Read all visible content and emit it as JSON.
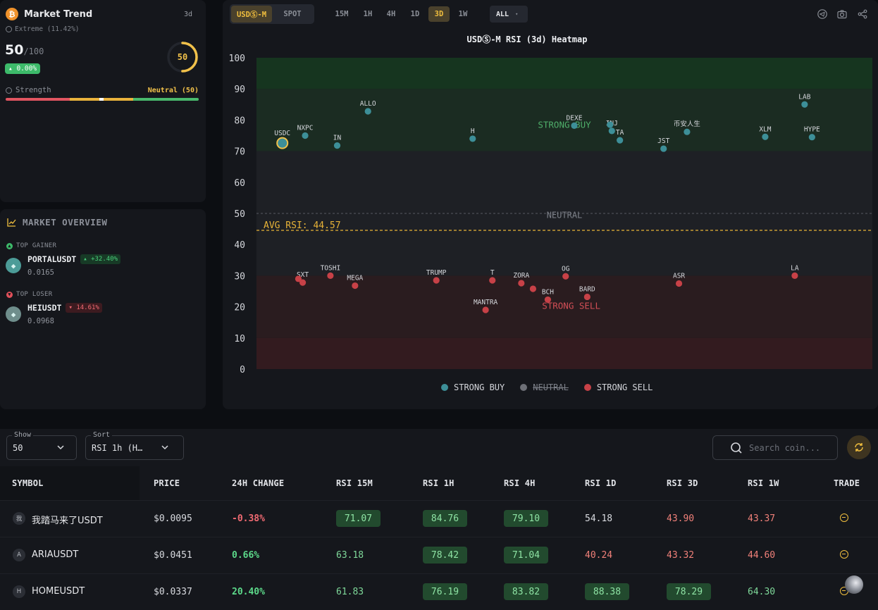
{
  "trend": {
    "title": "Market Trend",
    "period": "3d",
    "subtitle": "Extreme (11.42%)",
    "score": "50",
    "score_max": "/100",
    "change": "0.00%",
    "gauge_value": "50",
    "gauge_fraction": 0.5,
    "strength_label": "Strength",
    "strength_value": "Neutral (50)"
  },
  "overview": {
    "title": "MARKET OVERVIEW",
    "gainer_label": "TOP GAINER",
    "gainer": {
      "symbol": "PORTALUSDT",
      "change": "+32.40%",
      "price": "0.0165"
    },
    "loser_label": "TOP LOSER",
    "loser": {
      "symbol": "HEIUSDT",
      "change": "14.61%",
      "price": "0.0968"
    }
  },
  "toolbar": {
    "market_tabs": [
      "USDⓈ-M",
      "SPOT"
    ],
    "active_market": "USDⓈ-M",
    "timeframes": [
      "15M",
      "1H",
      "4H",
      "1D",
      "3D",
      "1W"
    ],
    "active_timeframe": "3D",
    "filter": "ALL"
  },
  "chart_data": {
    "type": "scatter",
    "title": "USDⓈ-M RSI (3d) Heatmap",
    "ylim": [
      0,
      100
    ],
    "yticks": [
      0,
      10,
      20,
      30,
      40,
      50,
      60,
      70,
      80,
      90,
      100
    ],
    "zones": [
      {
        "label": "STRONG BUY",
        "from": 70,
        "to": 100
      },
      {
        "label": "NEUTRAL",
        "from": 30,
        "to": 70
      },
      {
        "label": "STRONG SELL",
        "from": 0,
        "to": 30
      }
    ],
    "avg_label": "AVG RSI: 44.57",
    "avg": 44.57,
    "neutral_line": 50,
    "legend": [
      "STRONG BUY",
      "NEUTRAL",
      "STRONG SELL"
    ],
    "points": [
      {
        "label": "USDC",
        "x": 0.042,
        "y": 72.6,
        "group": "buy",
        "highlight": true
      },
      {
        "label": "NXPC",
        "x": 0.079,
        "y": 75.0,
        "group": "buy"
      },
      {
        "label": "IN",
        "x": 0.131,
        "y": 71.8,
        "group": "buy"
      },
      {
        "label": "ALLO",
        "x": 0.181,
        "y": 82.8,
        "group": "buy"
      },
      {
        "label": "H",
        "x": 0.351,
        "y": 74.0,
        "group": "buy"
      },
      {
        "label": "DEXE",
        "x": 0.516,
        "y": 78.2,
        "group": "buy"
      },
      {
        "label": "INJ",
        "x": 0.577,
        "y": 76.5,
        "group": "buy"
      },
      {
        "label": "TA",
        "x": 0.59,
        "y": 73.5,
        "group": "buy"
      },
      {
        "label": "",
        "x": 0.574,
        "y": 78.5,
        "group": "buy"
      },
      {
        "label": "JST",
        "x": 0.661,
        "y": 70.8,
        "group": "buy"
      },
      {
        "label": "币安人生",
        "x": 0.699,
        "y": 76.2,
        "group": "buy"
      },
      {
        "label": "XLM",
        "x": 0.826,
        "y": 74.6,
        "group": "buy"
      },
      {
        "label": "LAB",
        "x": 0.89,
        "y": 85.0,
        "group": "buy"
      },
      {
        "label": "HYPE",
        "x": 0.902,
        "y": 74.5,
        "group": "buy"
      },
      {
        "label": "SXT",
        "x": 0.075,
        "y": 27.8,
        "group": "sell"
      },
      {
        "label": "",
        "x": 0.068,
        "y": 29.0,
        "group": "sell"
      },
      {
        "label": "TOSHI",
        "x": 0.12,
        "y": 30.0,
        "group": "sell"
      },
      {
        "label": "MEGA",
        "x": 0.16,
        "y": 26.8,
        "group": "sell"
      },
      {
        "label": "TRUMP",
        "x": 0.292,
        "y": 28.5,
        "group": "sell"
      },
      {
        "label": "T",
        "x": 0.383,
        "y": 28.5,
        "group": "sell"
      },
      {
        "label": "MANTRA",
        "x": 0.372,
        "y": 19.0,
        "group": "sell"
      },
      {
        "label": "ZORA",
        "x": 0.43,
        "y": 27.6,
        "group": "sell"
      },
      {
        "label": "",
        "x": 0.449,
        "y": 25.8,
        "group": "sell"
      },
      {
        "label": "BCH",
        "x": 0.473,
        "y": 22.3,
        "group": "sell"
      },
      {
        "label": "OG",
        "x": 0.502,
        "y": 29.8,
        "group": "sell"
      },
      {
        "label": "BARD",
        "x": 0.537,
        "y": 23.2,
        "group": "sell"
      },
      {
        "label": "ASR",
        "x": 0.686,
        "y": 27.5,
        "group": "sell"
      },
      {
        "label": "LA",
        "x": 0.874,
        "y": 30.0,
        "group": "sell"
      }
    ],
    "colors": {
      "buy": "#3d8f98",
      "sell": "#c74147",
      "neutral": "#6e7077",
      "avg": "#e8b338"
    }
  },
  "controls": {
    "show_label": "Show",
    "show_value": "50",
    "sort_label": "Sort",
    "sort_value": "RSI 1h (H…",
    "search_placeholder": "Search coin..."
  },
  "table": {
    "headers": [
      "SYMBOL",
      "PRICE",
      "24H CHANGE",
      "RSI 15M",
      "RSI 1H",
      "RSI 4H",
      "RSI 1D",
      "RSI 3D",
      "RSI 1W",
      "TRADE"
    ],
    "rows": [
      {
        "icon": "我",
        "symbol": "我踏马来了USDT",
        "price": "$0.0095",
        "change": "-0.38%",
        "rsi": [
          "71.07",
          "84.76",
          "79.10",
          "54.18",
          "43.90",
          "43.37"
        ]
      },
      {
        "icon": "A",
        "symbol": "ARIAUSDT",
        "price": "$0.0451",
        "change": "0.66%",
        "rsi": [
          "63.18",
          "78.42",
          "71.04",
          "40.24",
          "43.32",
          "44.60"
        ]
      },
      {
        "icon": "H",
        "symbol": "HOMEUSDT",
        "price": "$0.0337",
        "change": "20.40%",
        "rsi": [
          "61.83",
          "76.19",
          "83.82",
          "88.38",
          "78.29",
          "64.30"
        ]
      }
    ]
  }
}
